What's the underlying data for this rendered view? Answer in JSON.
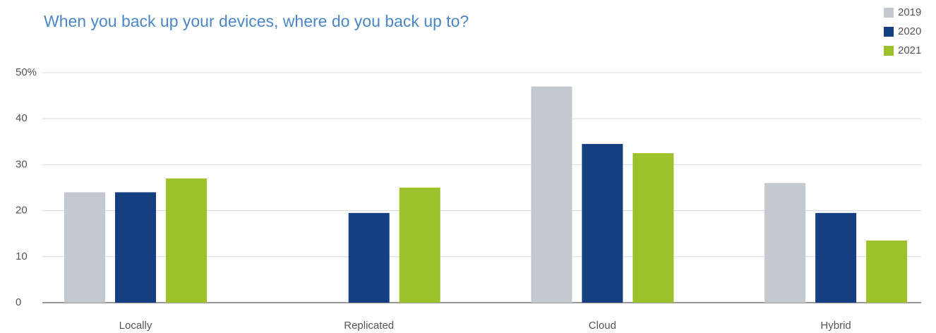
{
  "chart_data": {
    "type": "bar",
    "title": "When you back up your devices, where do you back up to?",
    "categories": [
      "Locally",
      "Replicated",
      "Cloud",
      "Hybrid"
    ],
    "series": [
      {
        "name": "2019",
        "color": "#c4c8cf",
        "values": [
          24,
          null,
          47,
          26
        ]
      },
      {
        "name": "2020",
        "color": "#163f82",
        "values": [
          24,
          19.5,
          34.5,
          19.5
        ]
      },
      {
        "name": "2021",
        "color": "#9dc12a",
        "values": [
          27,
          25,
          32.5,
          13.5
        ]
      }
    ],
    "ylim": [
      0,
      50
    ],
    "yticks": [
      0,
      10,
      20,
      30,
      40,
      {
        "value": 50,
        "label": "50%"
      }
    ],
    "grid": true,
    "legend": "top-right"
  }
}
